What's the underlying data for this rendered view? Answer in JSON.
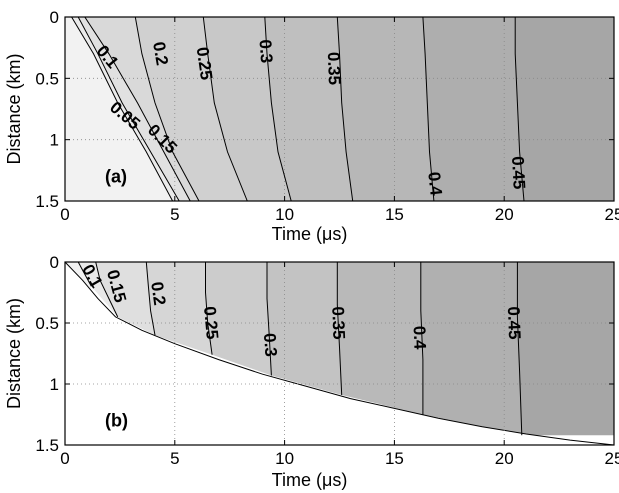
{
  "chart_data": [
    {
      "type": "contour",
      "panel_label": "(a)",
      "xlabel": "Time (μs)",
      "ylabel": "Distance (km)",
      "xlim": [
        0,
        25
      ],
      "ylim": [
        0,
        1.5
      ],
      "y_reversed": true,
      "xticks": [
        0,
        5,
        10,
        15,
        20,
        25
      ],
      "yticks": [
        0,
        0.5,
        1,
        1.5
      ],
      "grid": true,
      "colors": {
        "fill_light": "#f2f2f2",
        "fill_dark": "#a6a6a6",
        "line": "#000000"
      },
      "contours": [
        {
          "level": "0.05",
          "points": [
            [
              0.3,
              0
            ],
            [
              1.3,
              0.3
            ],
            [
              2.4,
              0.7
            ],
            [
              3.7,
              1.1
            ],
            [
              4.9,
              1.5
            ]
          ]
        },
        {
          "level": "0.1",
          "points": [
            [
              0.6,
              0
            ],
            [
              1.5,
              0.3
            ],
            [
              2.6,
              0.7
            ],
            [
              3.9,
              1.1
            ],
            [
              5.2,
              1.5
            ]
          ]
        },
        {
          "level": "0.15",
          "points": [
            [
              0.9,
              0
            ],
            [
              2.0,
              0.3
            ],
            [
              3.3,
              0.7
            ],
            [
              4.5,
              1.1
            ],
            [
              5.7,
              1.5
            ]
          ]
        },
        {
          "level": "0.2",
          "points": [
            [
              3.2,
              0
            ],
            [
              3.5,
              0.3
            ],
            [
              4.1,
              0.7
            ],
            [
              4.9,
              1.1
            ],
            [
              6.1,
              1.5
            ]
          ]
        },
        {
          "level": "0.25",
          "points": [
            [
              6.3,
              0
            ],
            [
              6.5,
              0.3
            ],
            [
              6.8,
              0.7
            ],
            [
              7.4,
              1.1
            ],
            [
              8.3,
              1.5
            ]
          ]
        },
        {
          "level": "0.3",
          "points": [
            [
              9.1,
              0
            ],
            [
              9.2,
              0.3
            ],
            [
              9.4,
              0.7
            ],
            [
              9.7,
              1.1
            ],
            [
              10.3,
              1.5
            ]
          ]
        },
        {
          "level": "0.35",
          "points": [
            [
              12.4,
              0
            ],
            [
              12.5,
              0.3
            ],
            [
              12.6,
              0.7
            ],
            [
              12.8,
              1.1
            ],
            [
              13.1,
              1.5
            ]
          ]
        },
        {
          "level": "0.4",
          "points": [
            [
              16.3,
              0
            ],
            [
              16.4,
              0.3
            ],
            [
              16.5,
              0.7
            ],
            [
              16.6,
              1.1
            ],
            [
              16.8,
              1.5
            ]
          ]
        },
        {
          "level": "0.45",
          "points": [
            [
              20.5,
              0
            ],
            [
              20.5,
              0.3
            ],
            [
              20.6,
              0.7
            ],
            [
              20.7,
              1.1
            ],
            [
              20.9,
              1.5
            ]
          ]
        }
      ],
      "labels": [
        {
          "text": "0.1",
          "x": 1.9,
          "y": 0.33,
          "rot": 50
        },
        {
          "text": "0.05",
          "x": 2.7,
          "y": 0.81,
          "rot": 40
        },
        {
          "text": "0.15",
          "x": 4.4,
          "y": 1.0,
          "rot": 45
        },
        {
          "text": "0.2",
          "x": 4.3,
          "y": 0.3,
          "rot": 80
        },
        {
          "text": "0.25",
          "x": 6.3,
          "y": 0.38,
          "rot": 82
        },
        {
          "text": "0.3",
          "x": 9.1,
          "y": 0.28,
          "rot": 86
        },
        {
          "text": "0.35",
          "x": 12.2,
          "y": 0.42,
          "rot": 88
        },
        {
          "text": "0.4",
          "x": 16.8,
          "y": 1.36,
          "rot": 84
        },
        {
          "text": "0.45",
          "x": 20.6,
          "y": 1.27,
          "rot": 87
        }
      ]
    },
    {
      "type": "contour",
      "panel_label": "(b)",
      "xlabel": "Time (μs)",
      "ylabel": "Distance (km)",
      "xlim": [
        0,
        25
      ],
      "ylim": [
        0,
        1.5
      ],
      "y_reversed": true,
      "xticks": [
        0,
        5,
        10,
        15,
        20,
        25
      ],
      "yticks": [
        0,
        0.5,
        1,
        1.5
      ],
      "grid": true,
      "colors": {
        "fill_light": "#f2f2f2",
        "fill_dark": "#a6a6a6",
        "line": "#000000"
      },
      "boundary": [
        [
          0,
          0
        ],
        [
          0.8,
          0.15
        ],
        [
          1.5,
          0.3
        ],
        [
          2.3,
          0.45
        ],
        [
          3.5,
          0.56
        ],
        [
          5,
          0.67
        ],
        [
          7,
          0.8
        ],
        [
          9,
          0.92
        ],
        [
          11,
          1.02
        ],
        [
          13,
          1.12
        ],
        [
          15,
          1.2
        ],
        [
          17,
          1.28
        ],
        [
          19,
          1.35
        ],
        [
          21,
          1.41
        ],
        [
          23,
          1.46
        ],
        [
          25,
          1.5
        ]
      ],
      "contours": [
        {
          "level": "0.1",
          "points": [
            [
              0.6,
              0
            ],
            [
              0.9,
              0.1
            ],
            [
              1.2,
              0.2
            ]
          ]
        },
        {
          "level": "0.15",
          "points": [
            [
              1.4,
              0
            ],
            [
              1.6,
              0.15
            ],
            [
              2.0,
              0.3
            ],
            [
              2.4,
              0.45
            ]
          ]
        },
        {
          "level": "0.2",
          "points": [
            [
              3.7,
              0
            ],
            [
              3.8,
              0.2
            ],
            [
              3.9,
              0.4
            ],
            [
              4.1,
              0.6
            ]
          ]
        },
        {
          "level": "0.25",
          "points": [
            [
              6.4,
              0
            ],
            [
              6.4,
              0.25
            ],
            [
              6.5,
              0.5
            ],
            [
              6.7,
              0.76
            ]
          ]
        },
        {
          "level": "0.3",
          "points": [
            [
              9.2,
              0
            ],
            [
              9.2,
              0.3
            ],
            [
              9.3,
              0.6
            ],
            [
              9.4,
              0.93
            ]
          ]
        },
        {
          "level": "0.35",
          "points": [
            [
              12.4,
              0
            ],
            [
              12.4,
              0.35
            ],
            [
              12.5,
              0.7
            ],
            [
              12.6,
              1.09
            ]
          ]
        },
        {
          "level": "0.4",
          "points": [
            [
              16.2,
              0
            ],
            [
              16.2,
              0.4
            ],
            [
              16.3,
              0.8
            ],
            [
              16.3,
              1.25
            ]
          ]
        },
        {
          "level": "0.45",
          "points": [
            [
              20.6,
              0
            ],
            [
              20.6,
              0.45
            ],
            [
              20.7,
              0.9
            ],
            [
              20.8,
              1.42
            ]
          ]
        }
      ],
      "labels": [
        {
          "text": "0.1",
          "x": 1.2,
          "y": 0.12,
          "rot": 60
        },
        {
          "text": "0.15",
          "x": 2.3,
          "y": 0.2,
          "rot": 75
        },
        {
          "text": "0.2",
          "x": 4.2,
          "y": 0.26,
          "rot": 82
        },
        {
          "text": "0.25",
          "x": 6.6,
          "y": 0.5,
          "rot": 85
        },
        {
          "text": "0.3",
          "x": 9.3,
          "y": 0.68,
          "rot": 86
        },
        {
          "text": "0.35",
          "x": 12.4,
          "y": 0.5,
          "rot": 88
        },
        {
          "text": "0.4",
          "x": 16.1,
          "y": 0.62,
          "rot": 88
        },
        {
          "text": "0.45",
          "x": 20.4,
          "y": 0.5,
          "rot": 88
        }
      ]
    }
  ]
}
